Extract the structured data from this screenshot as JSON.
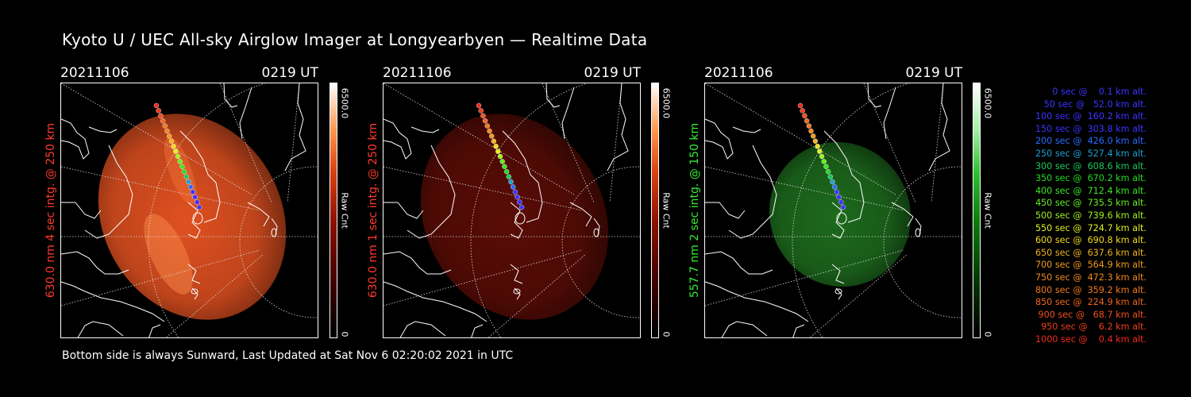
{
  "header": {
    "title": "Kyoto U / UEC All-sky Airglow Imager at Longyearbyen — Realtime Data"
  },
  "footer": {
    "text": "Bottom side is always Sunward, Last Updated at Sat Nov  6 02:20:02 2021 in UTC"
  },
  "panels": [
    {
      "date": "20211106",
      "time": "0219 UT",
      "ylabel": "630.0 nm 4 sec intg. @ 250 km",
      "ylabel_color": "#ff3a2a",
      "colorbar_max": "6500.0",
      "colorbar_min": "0",
      "colorbar_unit": "Raw Cnt",
      "emission_color": "#e05020",
      "brightness": 1.0
    },
    {
      "date": "20211106",
      "time": "0219 UT",
      "ylabel": "630.0 nm 1 sec intg. @ 250 km",
      "ylabel_color": "#ff3a2a",
      "colorbar_max": "6500.0",
      "colorbar_min": "0",
      "colorbar_unit": "Raw Cnt",
      "emission_color": "#5a0c06",
      "brightness": 0.35
    },
    {
      "date": "20211106",
      "time": "0219 UT",
      "ylabel": "557.7 nm 2 sec intg. @ 150 km",
      "ylabel_color": "#33ee33",
      "colorbar_max": "6500.0",
      "colorbar_min": "0",
      "colorbar_unit": "Raw Cnt",
      "emission_color": "#1d6a1d",
      "brightness": 0.6
    }
  ],
  "legend": [
    {
      "text": "0 sec @    0.1 km alt.",
      "color": "#3c32ff"
    },
    {
      "text": "50 sec @   52.0 km alt.",
      "color": "#3c32ff"
    },
    {
      "text": "100 sec @  160.2 km alt.",
      "color": "#3c32ff"
    },
    {
      "text": "150 sec @  303.8 km alt.",
      "color": "#3c32ff"
    },
    {
      "text": "200 sec @  426.0 km alt.",
      "color": "#2a6cff"
    },
    {
      "text": "250 sec @  527.4 km alt.",
      "color": "#1e9ed2"
    },
    {
      "text": "300 sec @  608.6 km alt.",
      "color": "#19c85a"
    },
    {
      "text": "350 sec @  670.2 km alt.",
      "color": "#22dc22"
    },
    {
      "text": "400 sec @  712.4 km alt.",
      "color": "#3ce628"
    },
    {
      "text": "450 sec @  735.5 km alt.",
      "color": "#66ec22"
    },
    {
      "text": "500 sec @  739.6 km alt.",
      "color": "#a0f01e"
    },
    {
      "text": "550 sec @  724.7 km alt.",
      "color": "#dcf01e"
    },
    {
      "text": "600 sec @  690.8 km alt.",
      "color": "#f0dc1e"
    },
    {
      "text": "650 sec @  637.6 km alt.",
      "color": "#f0b41e"
    },
    {
      "text": "700 sec @  564.9 km alt.",
      "color": "#f09a1e"
    },
    {
      "text": "750 sec @  472.3 km alt.",
      "color": "#f08a1e"
    },
    {
      "text": "800 sec @  359.2 km alt.",
      "color": "#f07a1e"
    },
    {
      "text": "850 sec @  224.9 km alt.",
      "color": "#f0661e"
    },
    {
      "text": "900 sec @   68.7 km alt.",
      "color": "#f0501e"
    },
    {
      "text": "950 sec @    6.2 km alt.",
      "color": "#f03c1e"
    },
    {
      "text": "1000 sec @    0.4 km alt.",
      "color": "#f02a1e"
    }
  ]
}
